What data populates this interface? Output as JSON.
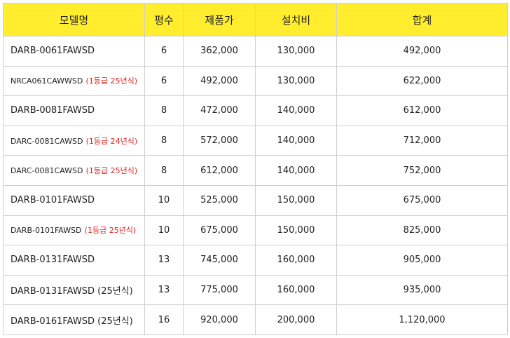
{
  "table": {
    "headers": {
      "model": "모델명",
      "size": "평수",
      "price": "제품가",
      "install": "설치비",
      "total": "합계"
    },
    "rows": [
      {
        "model": "DARB-0061FAWSD",
        "note": "",
        "note_color": "",
        "size": "6",
        "price": "362,000",
        "install": "130,000",
        "total": "492,000"
      },
      {
        "model": "NRCA061CAWWSD",
        "note": "(1등급 25년식)",
        "note_color": "red",
        "size": "6",
        "price": "492,000",
        "install": "130,000",
        "total": "622,000"
      },
      {
        "model": "DARB-0081FAWSD",
        "note": "",
        "note_color": "",
        "size": "8",
        "price": "472,000",
        "install": "140,000",
        "total": "612,000"
      },
      {
        "model": "DARC-0081CAWSD",
        "note": "(1등급 24년식)",
        "note_color": "red",
        "size": "8",
        "price": "572,000",
        "install": "140,000",
        "total": "712,000"
      },
      {
        "model": "DARC-0081CAWSD",
        "note": "(1등급 25년식)",
        "note_color": "red",
        "size": "8",
        "price": "612,000",
        "install": "140,000",
        "total": "752,000"
      },
      {
        "model": "DARB-0101FAWSD",
        "note": "",
        "note_color": "",
        "size": "10",
        "price": "525,000",
        "install": "150,000",
        "total": "675,000"
      },
      {
        "model": "DARB-0101FAWSD",
        "note": "(1등급 25년식)",
        "note_color": "red",
        "size": "10",
        "price": "675,000",
        "install": "150,000",
        "total": "825,000"
      },
      {
        "model": "DARB-0131FAWSD",
        "note": "",
        "note_color": "",
        "size": "13",
        "price": "745,000",
        "install": "160,000",
        "total": "905,000"
      },
      {
        "model": "DARB-0131FAWSD",
        "note": "(25년식)",
        "note_color": "plain",
        "size": "13",
        "price": "775,000",
        "install": "160,000",
        "total": "935,000"
      },
      {
        "model": "DARB-0161FAWSD",
        "note": "(25년식)",
        "note_color": "plain",
        "size": "16",
        "price": "920,000",
        "install": "200,000",
        "total": "1,120,000"
      }
    ]
  },
  "colors": {
    "header_bg": "#ffed2e",
    "note_red": "#e0201b",
    "border": "#cfcfcf"
  }
}
